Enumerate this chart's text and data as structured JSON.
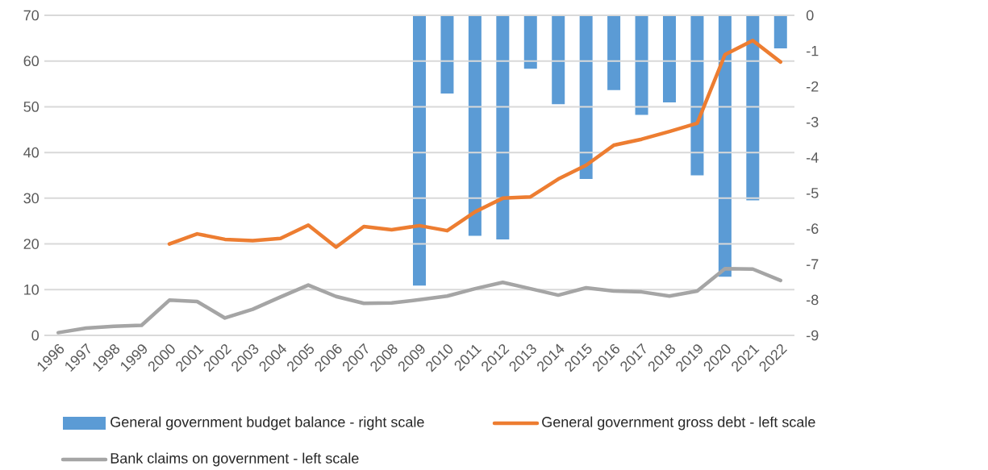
{
  "chart_data": {
    "type": "line",
    "categories": [
      "1996",
      "1997",
      "1998",
      "1999",
      "2000",
      "2001",
      "2002",
      "2003",
      "2004",
      "2005",
      "2006",
      "2007",
      "2008",
      "2009",
      "2010",
      "2011",
      "2012",
      "2013",
      "2014",
      "2015",
      "2016",
      "2017",
      "2018",
      "2019",
      "2020",
      "2021",
      "2022"
    ],
    "series": [
      {
        "name": "General government budget balance - right scale",
        "type": "bar",
        "axis": "y2",
        "color": "#5b9bd5",
        "values": [
          null,
          null,
          null,
          null,
          null,
          null,
          null,
          null,
          null,
          null,
          null,
          null,
          null,
          -7.6,
          -2.2,
          -6.2,
          -6.3,
          -1.5,
          -2.5,
          -4.6,
          -2.1,
          -2.8,
          -2.45,
          -4.5,
          -7.35,
          -5.2,
          -0.93
        ]
      },
      {
        "name": "General government gross debt - left scale",
        "color": "#ed7d31",
        "values": [
          null,
          null,
          null,
          null,
          20.0,
          22.2,
          21.0,
          20.7,
          21.2,
          24.1,
          19.3,
          23.8,
          23.1,
          24.0,
          22.9,
          27.0,
          30.0,
          30.3,
          34.2,
          37.2,
          41.6,
          42.9,
          44.6,
          46.4,
          61.4,
          64.5,
          59.8
        ]
      },
      {
        "name": "Bank claims on government - left scale",
        "color": "#a5a5a5",
        "values": [
          0.6,
          1.6,
          2.0,
          2.2,
          7.7,
          7.4,
          3.8,
          5.7,
          8.4,
          11.0,
          8.5,
          7.0,
          7.1,
          7.8,
          8.6,
          10.2,
          11.6,
          10.2,
          8.8,
          10.4,
          9.7,
          9.5,
          8.6,
          9.7,
          14.6,
          14.5,
          12.0
        ]
      }
    ],
    "ylim": [
      0,
      70
    ],
    "yticks": [
      0,
      10,
      20,
      30,
      40,
      50,
      60,
      70
    ],
    "y2lim": [
      -9,
      0
    ],
    "y2ticks": [
      -9,
      -8,
      -7,
      -6,
      -5,
      -4,
      -3,
      -2,
      -1,
      0
    ],
    "grid": "y",
    "legend": "bottom",
    "marker": "none",
    "line_style": "solid"
  }
}
